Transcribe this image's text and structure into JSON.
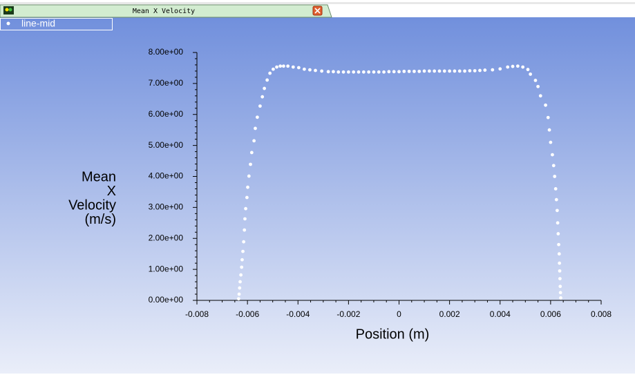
{
  "tab": {
    "title": "Mean X Velocity"
  },
  "chart_data": {
    "type": "scatter",
    "x_label": "Position (m)",
    "y_label": [
      "Mean",
      "X",
      "Velocity",
      "(m/s)"
    ],
    "x": [
      -0.00635,
      -0.00633,
      -0.00631,
      -0.00629,
      -0.00626,
      -0.00623,
      -0.00621,
      -0.00618,
      -0.00615,
      -0.00612,
      -0.0061,
      -0.00607,
      -0.00602,
      -0.00599,
      -0.00594,
      -0.00588,
      -0.00583,
      -0.00574,
      -0.00569,
      -0.00561,
      -0.0055,
      -0.00541,
      -0.00533,
      -0.00522,
      -0.00511,
      -0.00498,
      -0.00484,
      -0.0047,
      -0.00457,
      -0.0044,
      -0.00419,
      -0.00397,
      -0.00375,
      -0.00353,
      -0.00331,
      -0.00306,
      -0.0028,
      -0.0026,
      -0.0024,
      -0.0022,
      -0.002,
      -0.0018,
      -0.0016,
      -0.0014,
      -0.0012,
      -0.001,
      -0.0008,
      -0.0006,
      -0.0004,
      -0.0002,
      0,
      0.0002,
      0.0004,
      0.0006,
      0.0008,
      0.001,
      0.0012,
      0.0014,
      0.0016,
      0.0018,
      0.002,
      0.0022,
      0.0024,
      0.0026,
      0.0028,
      0.003,
      0.0032,
      0.0034,
      0.0037,
      0.004,
      0.0043,
      0.0045,
      0.0047,
      0.0049,
      0.0051,
      0.0052,
      0.0054,
      0.0055,
      0.0056,
      0.0058,
      0.0059,
      0.00595,
      0.006,
      0.00607,
      0.00612,
      0.00616,
      0.0062,
      0.00623,
      0.00626,
      0.00628,
      0.0063,
      0.00632,
      0.00634,
      0.00635,
      0.00636,
      0.00637,
      0.00638,
      0.00639,
      0.0064
    ],
    "series": [
      {
        "name": "line-mid",
        "color": "#ffffff",
        "values": [
          0.05,
          0.2,
          0.4,
          0.6,
          0.82,
          1.07,
          1.31,
          1.58,
          1.89,
          2.27,
          2.63,
          2.96,
          3.32,
          3.65,
          4.01,
          4.39,
          4.77,
          5.15,
          5.55,
          5.91,
          6.27,
          6.57,
          6.84,
          7.11,
          7.33,
          7.46,
          7.53,
          7.56,
          7.56,
          7.56,
          7.53,
          7.51,
          7.46,
          7.44,
          7.42,
          7.4,
          7.38,
          7.38,
          7.37,
          7.37,
          7.37,
          7.37,
          7.37,
          7.37,
          7.37,
          7.37,
          7.37,
          7.37,
          7.38,
          7.38,
          7.38,
          7.39,
          7.39,
          7.39,
          7.39,
          7.4,
          7.4,
          7.4,
          7.4,
          7.4,
          7.4,
          7.4,
          7.4,
          7.4,
          7.41,
          7.41,
          7.42,
          7.43,
          7.44,
          7.47,
          7.53,
          7.55,
          7.56,
          7.53,
          7.45,
          7.3,
          7.1,
          6.9,
          6.6,
          6.3,
          5.9,
          5.5,
          5.1,
          4.7,
          4.35,
          4.0,
          3.6,
          3.25,
          2.9,
          2.5,
          2.15,
          1.8,
          1.5,
          1.2,
          0.95,
          0.7,
          0.45,
          0.25,
          0.08
        ]
      }
    ],
    "xlim": [
      -0.008,
      0.008
    ],
    "xticks": [
      -0.008,
      -0.006,
      -0.004,
      -0.002,
      0,
      0.002,
      0.004,
      0.006,
      0.008
    ],
    "ylim": [
      0,
      8
    ],
    "yticks": [
      {
        "value": 0,
        "label": "0.00e+00"
      },
      {
        "value": 1,
        "label": "1.00e+00"
      },
      {
        "value": 2,
        "label": "2.00e+00"
      },
      {
        "value": 3,
        "label": "3.00e+00"
      },
      {
        "value": 4,
        "label": "4.00e+00"
      },
      {
        "value": 5,
        "label": "5.00e+00"
      },
      {
        "value": 6,
        "label": "6.00e+00"
      },
      {
        "value": 7,
        "label": "7.00e+00"
      },
      {
        "value": 8,
        "label": "8.00e+00"
      }
    ],
    "grid": false
  }
}
